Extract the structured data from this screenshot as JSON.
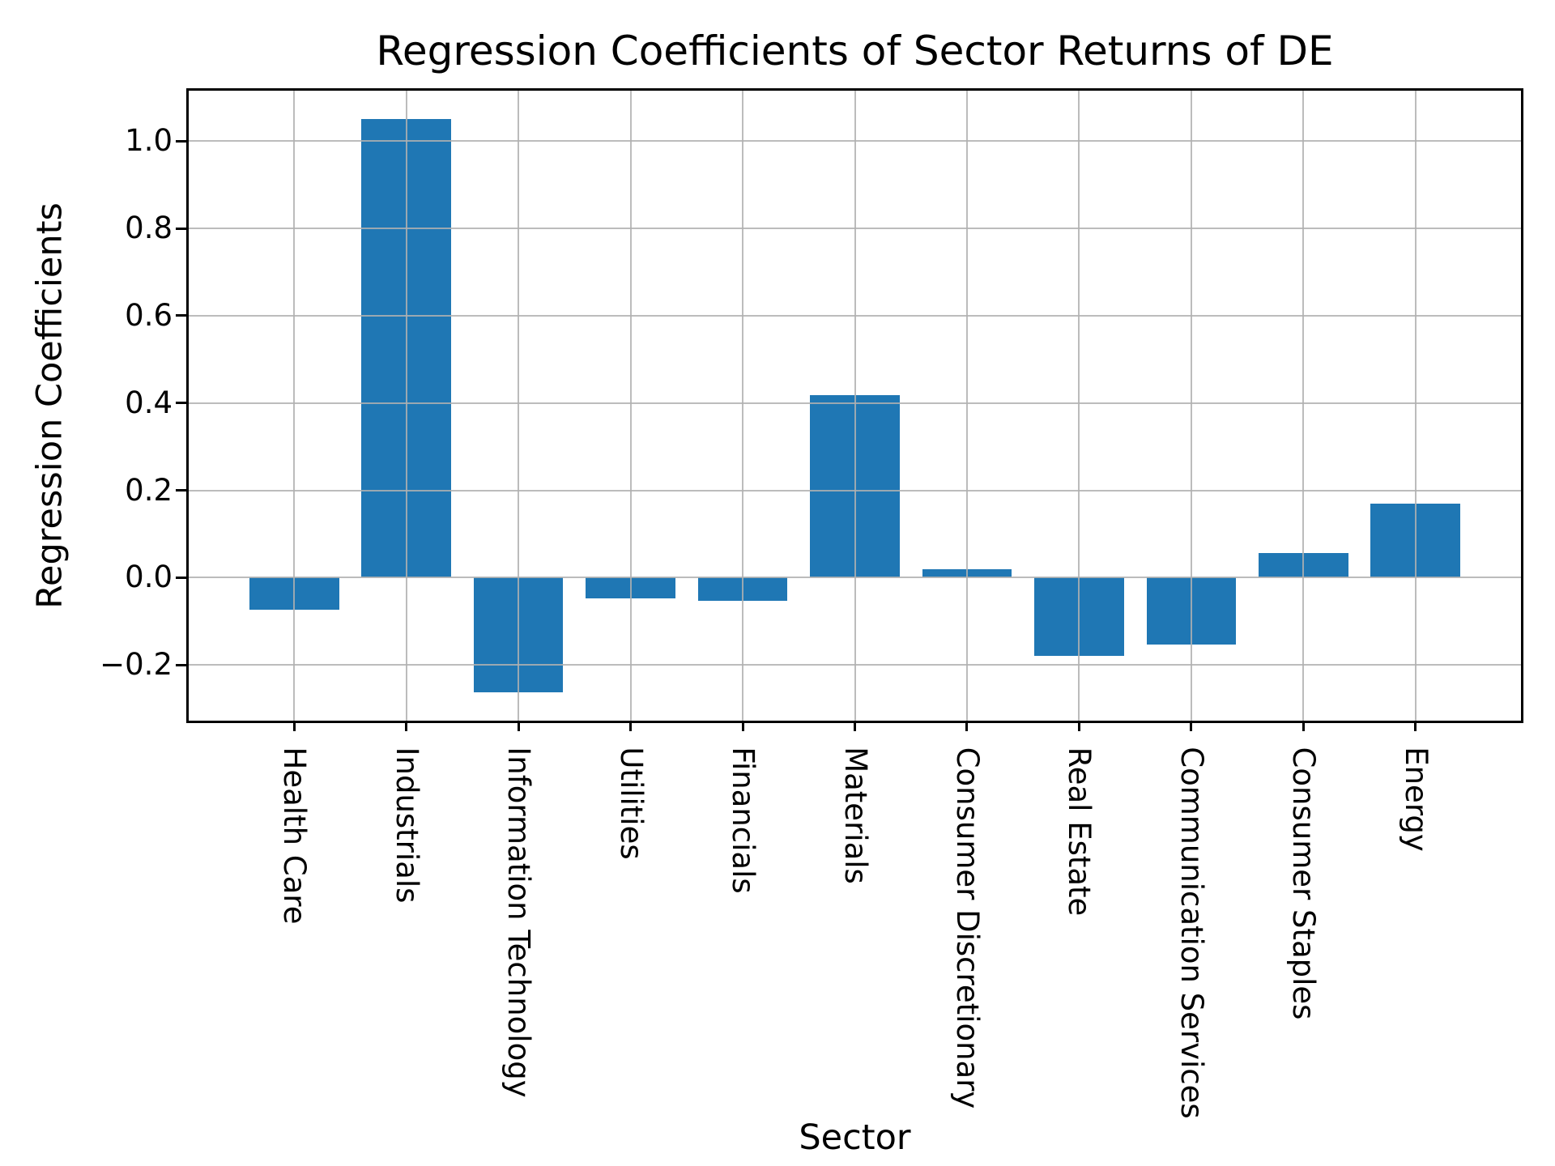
{
  "chart_data": {
    "type": "bar",
    "title": "Regression Coefficients of Sector Returns of DE",
    "xlabel": "Sector",
    "ylabel": "Regression Coefficients",
    "categories": [
      "Health Care",
      "Industrials",
      "Information Technology",
      "Utilities",
      "Financials",
      "Materials",
      "Consumer Discretionary",
      "Real Estate",
      "Communication Services",
      "Consumer Staples",
      "Energy"
    ],
    "values": [
      -0.073,
      1.05,
      -0.263,
      -0.047,
      -0.053,
      0.418,
      0.02,
      -0.18,
      -0.154,
      0.057,
      0.17
    ],
    "bar_color": "#1f77b4",
    "grid": true,
    "grid_color": "#b0b0b0",
    "axis_color": "#000000",
    "background_color": "#ffffff",
    "ylim": [
      -0.3275,
      1.1155
    ],
    "yticks": [
      1.0,
      0.8,
      0.6,
      0.4,
      0.2,
      0.0,
      -0.2
    ],
    "bar_width_fraction": 0.8,
    "x_tick_rotation_deg": 90,
    "legend": "none"
  }
}
